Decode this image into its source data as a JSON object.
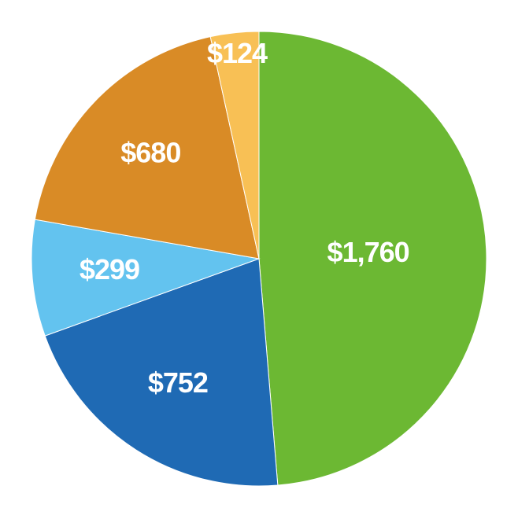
{
  "chart_data": {
    "type": "pie",
    "values": [
      1760,
      752,
      299,
      680,
      124
    ],
    "value_labels": [
      "$1,760",
      "$752",
      "$299",
      "$680",
      "$124"
    ],
    "colors": [
      "#6cb833",
      "#1f6ab4",
      "#63c3ef",
      "#d98b26",
      "#f8c055"
    ]
  }
}
